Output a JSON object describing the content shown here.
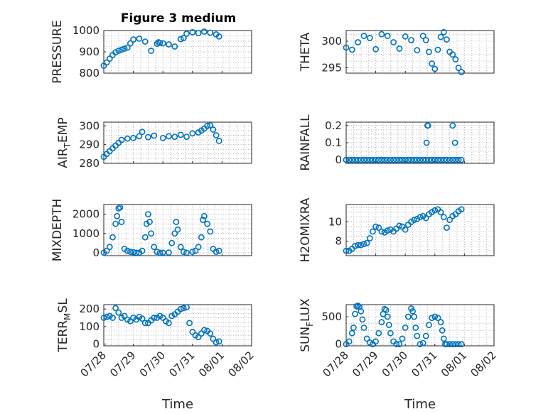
{
  "colors": {
    "series": "#0072bd"
  },
  "figure": {
    "title": "Figure 3 medium"
  },
  "chart_data": [
    {
      "type": "scatter",
      "ylabel": "PRESSURE",
      "xlabel": "",
      "ylim": [
        800,
        1000
      ],
      "yticks": [
        {
          "v": 800,
          "t": "800"
        },
        {
          "v": 900,
          "t": "900"
        },
        {
          "v": 1000,
          "t": "1000"
        }
      ],
      "x": [
        0.0,
        0.1,
        0.2,
        0.3,
        0.4,
        0.5,
        0.6,
        0.7,
        0.8,
        0.9,
        1.0,
        1.2,
        1.4,
        1.6,
        1.8,
        1.85,
        1.9,
        2.0,
        2.2,
        2.4,
        2.6,
        2.7,
        2.8,
        3.0,
        3.2,
        3.4,
        3.6,
        3.8,
        3.9
      ],
      "y": [
        835,
        850,
        868,
        885,
        898,
        905,
        910,
        915,
        920,
        940,
        958,
        962,
        948,
        905,
        938,
        945,
        942,
        940,
        935,
        925,
        960,
        965,
        985,
        992,
        988,
        995,
        990,
        982,
        972
      ]
    },
    {
      "type": "scatter",
      "ylabel": "THETA",
      "xlabel": "",
      "ylim": [
        294,
        302
      ],
      "yticks": [
        {
          "v": 295,
          "t": "295"
        },
        {
          "v": 300,
          "t": "300"
        }
      ],
      "x": [
        0.0,
        0.2,
        0.4,
        0.6,
        0.8,
        1.0,
        1.2,
        1.4,
        1.6,
        1.8,
        2.0,
        2.2,
        2.4,
        2.6,
        2.7,
        2.8,
        2.9,
        3.0,
        3.1,
        3.2,
        3.3,
        3.4,
        3.5,
        3.6,
        3.7,
        3.8,
        3.9
      ],
      "y": [
        298.8,
        298.4,
        299.8,
        301.0,
        300.6,
        298.5,
        301.3,
        301.0,
        299.8,
        298.6,
        300.9,
        300.2,
        298.3,
        301.0,
        300.2,
        298.0,
        295.8,
        294.8,
        298.4,
        300.8,
        301.7,
        300.3,
        298.0,
        297.5,
        296.6,
        295.0,
        294.2
      ]
    },
    {
      "type": "scatter",
      "ylabel": "AIR_TEMP",
      "xlabel": "",
      "ylim": [
        280,
        302
      ],
      "yticks": [
        {
          "v": 280,
          "t": "280"
        },
        {
          "v": 290,
          "t": "290"
        },
        {
          "v": 300,
          "t": "300"
        }
      ],
      "x": [
        0.0,
        0.1,
        0.2,
        0.3,
        0.4,
        0.5,
        0.6,
        0.8,
        1.0,
        1.2,
        1.3,
        1.5,
        1.7,
        2.0,
        2.2,
        2.4,
        2.6,
        2.8,
        3.0,
        3.2,
        3.3,
        3.4,
        3.5,
        3.6,
        3.7,
        3.8,
        3.9
      ],
      "y": [
        283.5,
        285,
        286.5,
        288,
        289.5,
        291,
        292.5,
        293.2,
        293.5,
        294.5,
        296.8,
        294,
        294.8,
        293.5,
        294.5,
        294.2,
        295.2,
        294.2,
        296,
        296.5,
        297.5,
        298.5,
        300,
        300.3,
        298,
        295,
        292
      ]
    },
    {
      "type": "scatter",
      "ylabel": "RAINFALL",
      "xlabel": "",
      "ylim": [
        -0.02,
        0.22
      ],
      "yticks": [
        {
          "v": 0,
          "t": "0"
        },
        {
          "v": 0.1,
          "t": "0.1"
        },
        {
          "v": 0.2,
          "t": "0.2"
        }
      ],
      "x": [
        0.0,
        0.1,
        0.2,
        0.3,
        0.4,
        0.5,
        0.6,
        0.7,
        0.8,
        0.9,
        1.0,
        1.1,
        1.2,
        1.3,
        1.4,
        1.5,
        1.6,
        1.7,
        1.8,
        1.9,
        2.0,
        2.1,
        2.2,
        2.3,
        2.4,
        2.5,
        2.6,
        2.7,
        2.8,
        2.9,
        3.0,
        3.1,
        3.2,
        3.3,
        3.4,
        3.5,
        3.6,
        3.7,
        3.8,
        3.9,
        2.72,
        2.75,
        2.77,
        3.6,
        3.68
      ],
      "y": [
        0,
        0,
        0,
        0,
        0,
        0,
        0,
        0,
        0,
        0,
        0,
        0,
        0,
        0,
        0,
        0,
        0,
        0,
        0,
        0,
        0,
        0,
        0,
        0,
        0,
        0,
        0,
        0,
        0,
        0,
        0,
        0,
        0,
        0,
        0,
        0,
        0,
        0,
        0,
        0,
        0.1,
        0.2,
        0.2,
        0.2,
        0.1
      ]
    },
    {
      "type": "scatter",
      "ylabel": "MIXDEPTH",
      "xlabel": "",
      "ylim": [
        -150,
        2500
      ],
      "yticks": [
        {
          "v": 0,
          "t": "0"
        },
        {
          "v": 1000,
          "t": "1000"
        },
        {
          "v": 2000,
          "t": "2000"
        }
      ],
      "x": [
        0.0,
        0.1,
        0.2,
        0.3,
        0.4,
        0.45,
        0.5,
        0.55,
        0.6,
        0.7,
        0.8,
        0.9,
        1.0,
        1.1,
        1.2,
        1.3,
        1.4,
        1.45,
        1.5,
        1.55,
        1.6,
        1.7,
        1.8,
        1.9,
        2.0,
        2.2,
        2.3,
        2.4,
        2.45,
        2.5,
        2.6,
        2.7,
        2.8,
        3.0,
        3.1,
        3.2,
        3.3,
        3.35,
        3.4,
        3.5,
        3.6,
        3.7,
        3.8,
        3.9
      ],
      "y": [
        0,
        100,
        300,
        800,
        1500,
        1900,
        2300,
        2350,
        1600,
        200,
        100,
        50,
        30,
        0,
        0,
        100,
        800,
        1500,
        2000,
        1600,
        1000,
        300,
        50,
        0,
        0,
        10,
        500,
        1000,
        1600,
        1200,
        300,
        50,
        0,
        50,
        100,
        300,
        800,
        1700,
        1900,
        1500,
        1100,
        200,
        50,
        100
      ]
    },
    {
      "type": "scatter",
      "ylabel": "H2OMIXRA",
      "xlabel": "",
      "ylim": [
        6.5,
        11.8
      ],
      "yticks": [
        {
          "v": 8,
          "t": "8"
        },
        {
          "v": 10,
          "t": "10"
        }
      ],
      "x": [
        0.0,
        0.1,
        0.2,
        0.3,
        0.4,
        0.5,
        0.6,
        0.7,
        0.8,
        0.9,
        1.0,
        1.1,
        1.2,
        1.3,
        1.4,
        1.5,
        1.6,
        1.7,
        1.8,
        1.9,
        2.0,
        2.1,
        2.2,
        2.3,
        2.4,
        2.5,
        2.6,
        2.7,
        2.8,
        2.9,
        3.0,
        3.1,
        3.2,
        3.3,
        3.4,
        3.5,
        3.6,
        3.7,
        3.8,
        3.9
      ],
      "y": [
        7.0,
        7.0,
        7.2,
        7.5,
        7.6,
        7.6,
        7.7,
        7.8,
        8.3,
        9.0,
        9.5,
        9.4,
        9.0,
        8.9,
        9.1,
        9.2,
        9.0,
        9.3,
        9.6,
        9.5,
        9.2,
        9.7,
        10.0,
        10.2,
        10.3,
        10.5,
        10.6,
        10.4,
        10.8,
        11.0,
        11.2,
        11.3,
        11.0,
        10.5,
        9.4,
        10.2,
        10.6,
        10.8,
        11.1,
        11.3
      ]
    },
    {
      "type": "scatter",
      "ylabel": "TERR_MSL",
      "xlabel": "Time",
      "ylim": [
        -10,
        225
      ],
      "yticks": [
        {
          "v": 0,
          "t": "0"
        },
        {
          "v": 100,
          "t": "100"
        },
        {
          "v": 200,
          "t": "200"
        }
      ],
      "xticklabels": [
        "07/28",
        "07/29",
        "07/30",
        "07/31",
        "08/01",
        "08/02"
      ],
      "x": [
        0.0,
        0.1,
        0.2,
        0.3,
        0.4,
        0.5,
        0.6,
        0.7,
        0.8,
        0.9,
        1.0,
        1.1,
        1.2,
        1.3,
        1.4,
        1.5,
        1.6,
        1.7,
        1.8,
        1.9,
        2.0,
        2.1,
        2.2,
        2.3,
        2.4,
        2.5,
        2.6,
        2.7,
        2.8,
        2.9,
        3.0,
        3.1,
        3.2,
        3.3,
        3.4,
        3.5,
        3.6,
        3.7,
        3.8,
        3.9
      ],
      "y": [
        150,
        155,
        160,
        150,
        205,
        180,
        150,
        160,
        140,
        130,
        150,
        140,
        155,
        145,
        120,
        120,
        135,
        150,
        150,
        160,
        150,
        130,
        120,
        160,
        170,
        185,
        200,
        205,
        210,
        120,
        70,
        50,
        40,
        60,
        80,
        75,
        60,
        30,
        10,
        15
      ]
    },
    {
      "type": "scatter",
      "ylabel": "SUN_FLUX",
      "xlabel": "Time",
      "ylim": [
        -30,
        720
      ],
      "yticks": [
        {
          "v": 0,
          "t": "0"
        },
        {
          "v": 500,
          "t": "500"
        }
      ],
      "xticklabels": [
        "07/28",
        "07/29",
        "07/30",
        "07/31",
        "08/01",
        "08/02"
      ],
      "x": [
        0.0,
        0.1,
        0.2,
        0.25,
        0.3,
        0.35,
        0.4,
        0.45,
        0.5,
        0.55,
        0.6,
        0.7,
        0.8,
        0.9,
        1.0,
        1.1,
        1.2,
        1.25,
        1.3,
        1.35,
        1.4,
        1.45,
        1.5,
        1.6,
        1.7,
        1.8,
        1.9,
        2.0,
        2.1,
        2.2,
        2.25,
        2.3,
        2.35,
        2.4,
        2.5,
        2.6,
        2.7,
        2.8,
        2.9,
        3.0,
        3.1,
        3.2,
        3.25,
        3.3,
        3.35,
        3.4,
        3.5,
        3.6,
        3.7,
        3.8,
        3.9
      ],
      "y": [
        0,
        50,
        200,
        300,
        550,
        690,
        700,
        680,
        600,
        450,
        300,
        100,
        30,
        0,
        50,
        200,
        400,
        550,
        640,
        620,
        500,
        350,
        200,
        50,
        0,
        0,
        100,
        300,
        500,
        650,
        600,
        500,
        300,
        150,
        0,
        20,
        150,
        350,
        480,
        500,
        480,
        400,
        250,
        100,
        0,
        0,
        0,
        0,
        0,
        0,
        0
      ]
    }
  ]
}
